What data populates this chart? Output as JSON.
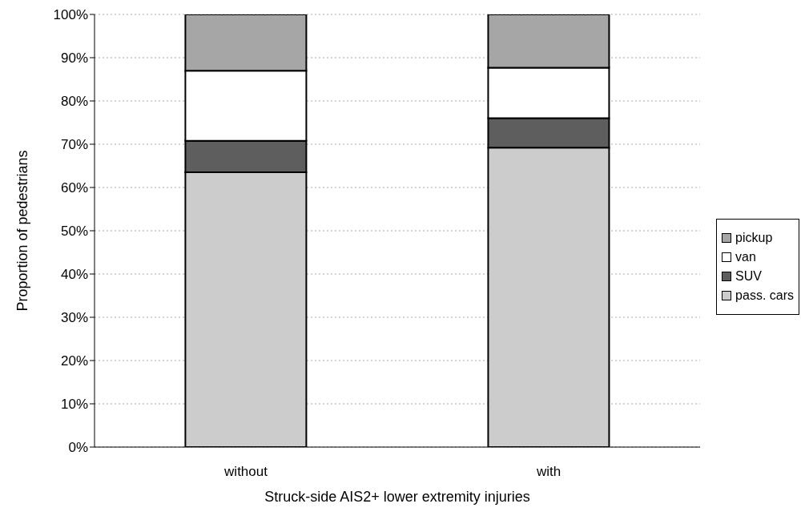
{
  "chart_data": {
    "type": "bar",
    "stacked": true,
    "xlabel": "Struck-side AIS2+ lower extremity injuries",
    "ylabel": "Proportion of pedestrians",
    "categories": [
      "without",
      "with"
    ],
    "series": [
      {
        "name": "pass. cars",
        "color": "#cccccc",
        "values": [
          63.5,
          69.2
        ]
      },
      {
        "name": "SUV",
        "color": "#5e5e5e",
        "values": [
          7.3,
          6.8
        ]
      },
      {
        "name": "van",
        "color": "#ffffff",
        "values": [
          16.2,
          11.7
        ]
      },
      {
        "name": "pickup",
        "color": "#a6a6a6",
        "values": [
          13,
          12.3
        ]
      }
    ],
    "ylim": [
      0,
      100
    ],
    "yticks": [
      {
        "value": 0,
        "label": "0%"
      },
      {
        "value": 10,
        "label": "10%"
      },
      {
        "value": 20,
        "label": "20%"
      },
      {
        "value": 30,
        "label": "30%"
      },
      {
        "value": 40,
        "label": "40%"
      },
      {
        "value": 50,
        "label": "50%"
      },
      {
        "value": 60,
        "label": "60%"
      },
      {
        "value": 70,
        "label": "70%"
      },
      {
        "value": 80,
        "label": "80%"
      },
      {
        "value": 90,
        "label": "90%"
      },
      {
        "value": 100,
        "label": "100%"
      }
    ],
    "grid": "y",
    "legend": "right"
  }
}
